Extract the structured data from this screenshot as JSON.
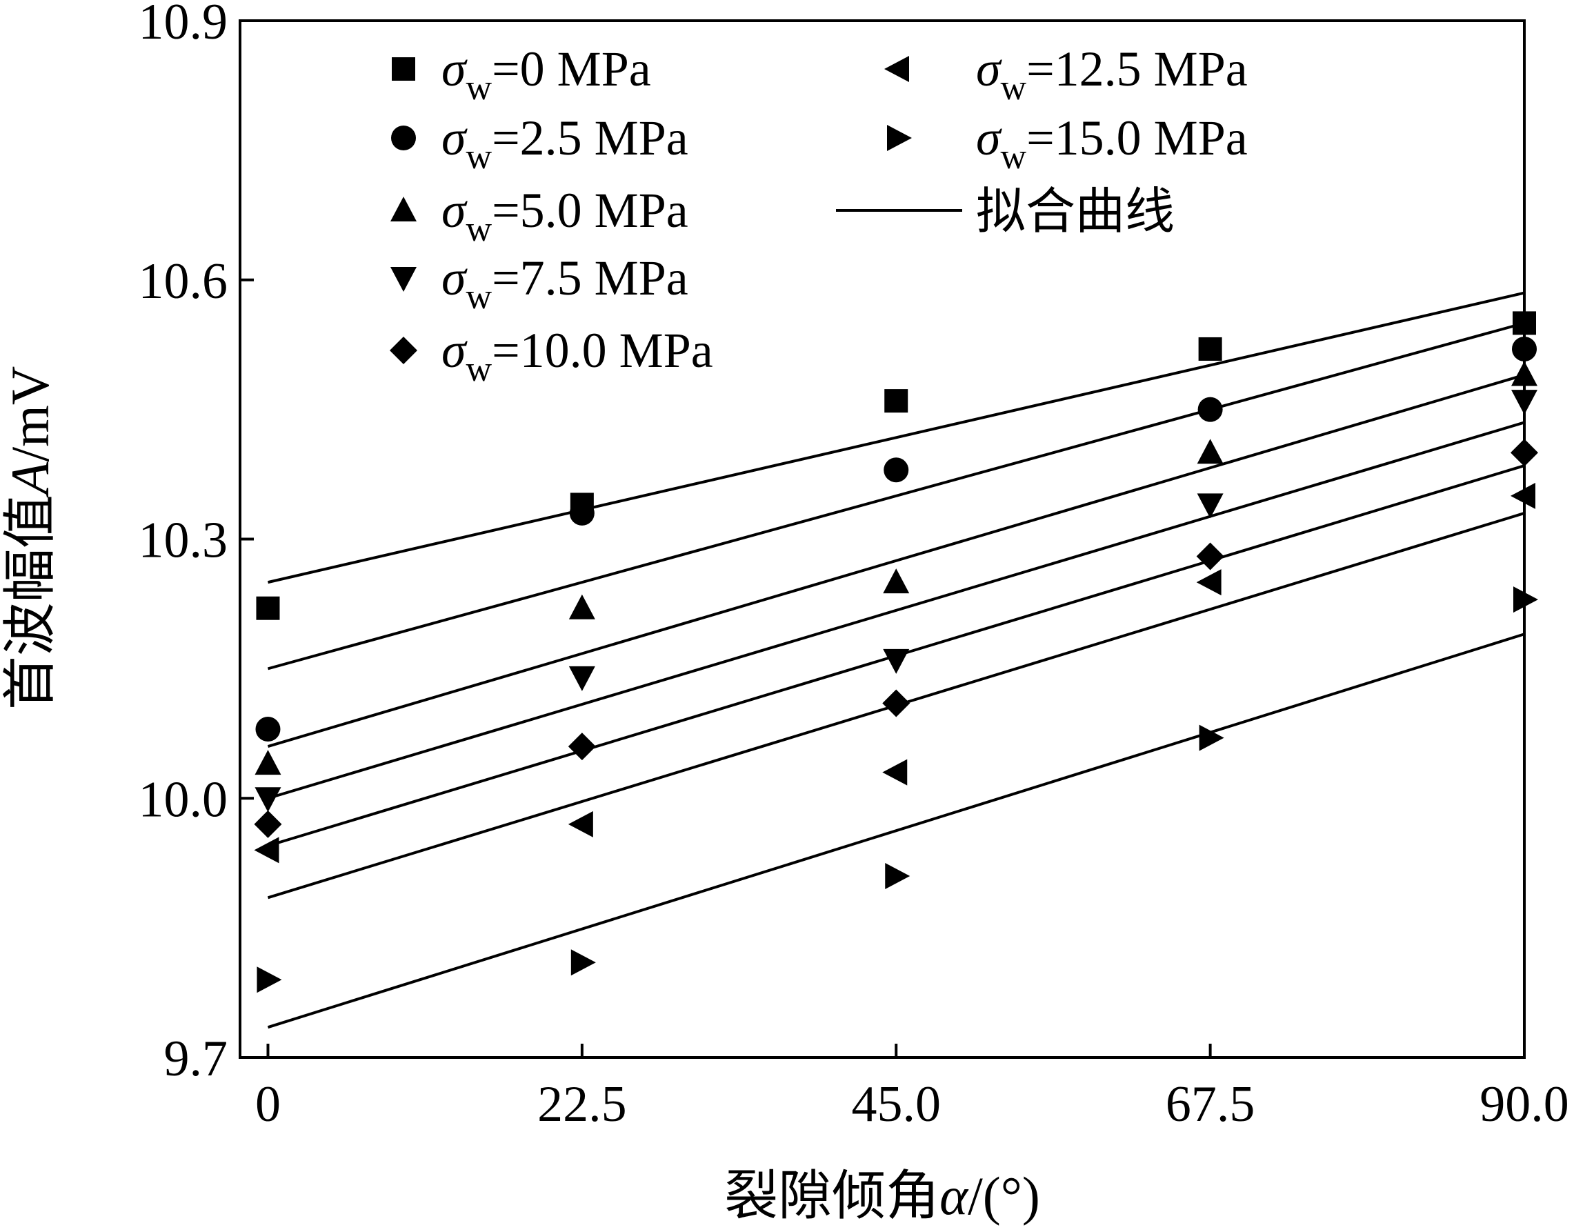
{
  "chart_data": {
    "type": "scatter",
    "xlabel_prefix": "裂隙倾角",
    "xlabel_symbol": "α",
    "xlabel_unit": "/(°)",
    "ylabel_prefix": "首波幅值",
    "ylabel_symbol": "A",
    "ylabel_unit": "/mV",
    "xlim": [
      -2.0,
      90.0
    ],
    "ylim": [
      9.7,
      10.9
    ],
    "x_ticks": [
      0,
      22.5,
      45.0,
      67.5,
      90.0
    ],
    "x_tick_labels": [
      "0",
      "22.5",
      "45.0",
      "67.5",
      "90.0"
    ],
    "y_ticks": [
      9.7,
      10.0,
      10.3,
      10.6,
      10.9
    ],
    "y_tick_labels": [
      "9.7",
      "10.0",
      "10.3",
      "10.6",
      "10.9"
    ],
    "x": [
      0,
      22.5,
      45.0,
      67.5,
      90.0
    ],
    "legend_symbol": "σ",
    "legend_subscript": "w",
    "fit_label": "拟合曲线",
    "series": [
      {
        "name": "σw=0 MPa",
        "label_value": "=0 MPa",
        "marker": "square",
        "values": [
          10.22,
          10.34,
          10.46,
          10.52,
          10.55
        ],
        "fit": [
          10.25,
          10.585
        ]
      },
      {
        "name": "σw=2.5 MPa",
        "label_value": "=2.5 MPa",
        "marker": "circle",
        "values": [
          10.08,
          10.33,
          10.38,
          10.45,
          10.52
        ],
        "fit": [
          10.15,
          10.55
        ]
      },
      {
        "name": "σw=5.0 MPa",
        "label_value": "=5.0 MPa",
        "marker": "triangle-up",
        "values": [
          10.04,
          10.22,
          10.25,
          10.4,
          10.49
        ],
        "fit": [
          10.06,
          10.49
        ]
      },
      {
        "name": "σw=7.5 MPa",
        "label_value": "=7.5 MPa",
        "marker": "triangle-down",
        "values": [
          10.0,
          10.14,
          10.16,
          10.34,
          10.46
        ],
        "fit": [
          10.0,
          10.435
        ]
      },
      {
        "name": "σw=10.0 MPa",
        "label_value": "=10.0 MPa",
        "marker": "diamond",
        "values": [
          9.97,
          10.06,
          10.11,
          10.28,
          10.4
        ],
        "fit": [
          9.945,
          10.385
        ]
      },
      {
        "name": "σw=12.5 MPa",
        "label_value": "=12.5 MPa",
        "marker": "triangle-left",
        "values": [
          9.94,
          9.97,
          10.03,
          10.25,
          10.35
        ],
        "fit": [
          9.885,
          10.33
        ]
      },
      {
        "name": "σw=15.0 MPa",
        "label_value": "=15.0 MPa",
        "marker": "triangle-right",
        "values": [
          9.79,
          9.81,
          9.91,
          10.07,
          10.23
        ],
        "fit": [
          9.735,
          10.19
        ]
      }
    ],
    "legend_position": "top"
  }
}
